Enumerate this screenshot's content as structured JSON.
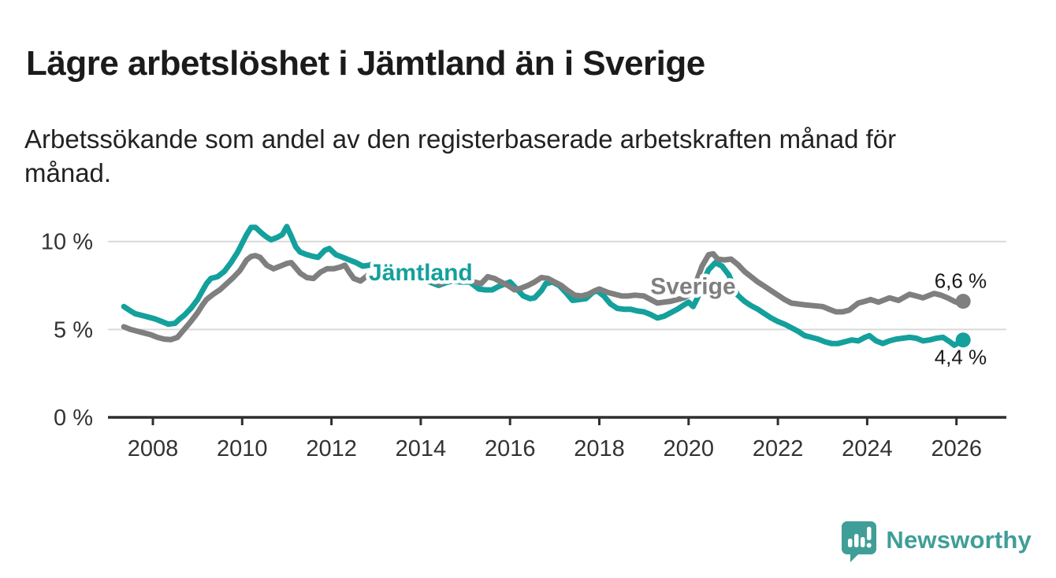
{
  "header": {
    "title": "Lägre arbetslöshet i Jämtland än i Sverige",
    "subtitle": "Arbetssökande som andel av den registerbaserade arbetskraften månad för månad."
  },
  "footer": {
    "brand": "Newsworthy",
    "brand_color": "#3f9e98"
  },
  "chart_data": {
    "type": "line",
    "title": "Lägre arbetslöshet i Jämtland än i Sverige",
    "xlabel": "",
    "ylabel": "",
    "unit": "%",
    "decimal_style": "comma",
    "grid": "horizontal",
    "xlim": [
      2007.0,
      2027.1
    ],
    "ylim": [
      0,
      11.5
    ],
    "x_ticks": [
      2008,
      2010,
      2012,
      2014,
      2016,
      2018,
      2020,
      2022,
      2024,
      2026
    ],
    "x_tick_labels": [
      "2008",
      "2010",
      "2012",
      "2014",
      "2016",
      "2018",
      "2020",
      "2022",
      "2024",
      "2026"
    ],
    "y_ticks": [
      {
        "value": 0,
        "label": "0 %"
      },
      {
        "value": 5,
        "label": "5 %"
      },
      {
        "value": 10,
        "label": "10 %"
      }
    ],
    "colors": {
      "axis": "#2f2f2f",
      "grid": "#d9d9d9",
      "tick_label": "#333333",
      "value_label": "#1a1a1a"
    },
    "series": [
      {
        "name": "Jämtland",
        "color": "#14a09c",
        "end_value": 4.4,
        "end_label": "4,4 %",
        "end_label_position": "below",
        "name_label": {
          "x": 2014.0,
          "y": 8.25
        },
        "points": [
          [
            2007.35,
            6.3
          ],
          [
            2007.5,
            6.05
          ],
          [
            2007.6,
            5.9
          ],
          [
            2007.75,
            5.8
          ],
          [
            2007.9,
            5.7
          ],
          [
            2008.05,
            5.6
          ],
          [
            2008.2,
            5.45
          ],
          [
            2008.35,
            5.3
          ],
          [
            2008.5,
            5.35
          ],
          [
            2008.6,
            5.6
          ],
          [
            2008.7,
            5.8
          ],
          [
            2008.85,
            6.2
          ],
          [
            2009.0,
            6.7
          ],
          [
            2009.1,
            7.15
          ],
          [
            2009.2,
            7.6
          ],
          [
            2009.3,
            7.9
          ],
          [
            2009.45,
            8.0
          ],
          [
            2009.6,
            8.3
          ],
          [
            2009.75,
            8.8
          ],
          [
            2009.9,
            9.4
          ],
          [
            2010.0,
            9.9
          ],
          [
            2010.1,
            10.4
          ],
          [
            2010.2,
            10.8
          ],
          [
            2010.3,
            10.8
          ],
          [
            2010.45,
            10.45
          ],
          [
            2010.55,
            10.25
          ],
          [
            2010.65,
            10.1
          ],
          [
            2010.8,
            10.25
          ],
          [
            2010.9,
            10.4
          ],
          [
            2011.0,
            10.85
          ],
          [
            2011.1,
            10.3
          ],
          [
            2011.2,
            9.7
          ],
          [
            2011.3,
            9.4
          ],
          [
            2011.45,
            9.25
          ],
          [
            2011.6,
            9.15
          ],
          [
            2011.7,
            9.1
          ],
          [
            2011.85,
            9.5
          ],
          [
            2011.95,
            9.6
          ],
          [
            2012.1,
            9.25
          ],
          [
            2012.25,
            9.1
          ],
          [
            2012.4,
            8.95
          ],
          [
            2012.55,
            8.8
          ],
          [
            2012.7,
            8.6
          ],
          [
            2012.85,
            8.65
          ],
          [
            2012.95,
            8.75
          ],
          [
            2013.1,
            8.55
          ],
          [
            2013.3,
            8.25
          ],
          [
            2013.5,
            8.05
          ],
          [
            2013.7,
            7.9
          ],
          [
            2013.9,
            7.85
          ],
          [
            2014.1,
            7.8
          ],
          [
            2014.25,
            7.65
          ],
          [
            2014.4,
            7.5
          ],
          [
            2014.55,
            7.65
          ],
          [
            2014.7,
            7.75
          ],
          [
            2014.9,
            7.7
          ],
          [
            2015.1,
            7.7
          ],
          [
            2015.3,
            7.3
          ],
          [
            2015.45,
            7.25
          ],
          [
            2015.6,
            7.25
          ],
          [
            2015.75,
            7.45
          ],
          [
            2015.9,
            7.6
          ],
          [
            2016.0,
            7.7
          ],
          [
            2016.15,
            7.3
          ],
          [
            2016.3,
            6.9
          ],
          [
            2016.45,
            6.75
          ],
          [
            2016.55,
            6.8
          ],
          [
            2016.7,
            7.2
          ],
          [
            2016.8,
            7.6
          ],
          [
            2016.95,
            7.7
          ],
          [
            2017.1,
            7.5
          ],
          [
            2017.25,
            7.1
          ],
          [
            2017.4,
            6.65
          ],
          [
            2017.55,
            6.7
          ],
          [
            2017.7,
            6.75
          ],
          [
            2017.85,
            7.1
          ],
          [
            2017.95,
            7.2
          ],
          [
            2018.1,
            6.9
          ],
          [
            2018.25,
            6.45
          ],
          [
            2018.4,
            6.2
          ],
          [
            2018.55,
            6.15
          ],
          [
            2018.7,
            6.15
          ],
          [
            2018.85,
            6.05
          ],
          [
            2019.0,
            6.0
          ],
          [
            2019.15,
            5.85
          ],
          [
            2019.3,
            5.65
          ],
          [
            2019.45,
            5.75
          ],
          [
            2019.6,
            5.95
          ],
          [
            2019.75,
            6.15
          ],
          [
            2019.9,
            6.4
          ],
          [
            2020.0,
            6.55
          ],
          [
            2020.1,
            6.3
          ],
          [
            2020.2,
            6.8
          ],
          [
            2020.3,
            7.6
          ],
          [
            2020.45,
            8.4
          ],
          [
            2020.6,
            8.8
          ],
          [
            2020.75,
            8.6
          ],
          [
            2020.9,
            8.1
          ],
          [
            2021.0,
            7.5
          ],
          [
            2021.1,
            6.95
          ],
          [
            2021.25,
            6.6
          ],
          [
            2021.4,
            6.35
          ],
          [
            2021.55,
            6.15
          ],
          [
            2021.7,
            5.9
          ],
          [
            2021.85,
            5.65
          ],
          [
            2022.0,
            5.45
          ],
          [
            2022.15,
            5.3
          ],
          [
            2022.3,
            5.1
          ],
          [
            2022.45,
            4.9
          ],
          [
            2022.6,
            4.65
          ],
          [
            2022.75,
            4.55
          ],
          [
            2022.9,
            4.45
          ],
          [
            2023.05,
            4.3
          ],
          [
            2023.2,
            4.2
          ],
          [
            2023.35,
            4.2
          ],
          [
            2023.5,
            4.3
          ],
          [
            2023.65,
            4.4
          ],
          [
            2023.8,
            4.35
          ],
          [
            2023.95,
            4.55
          ],
          [
            2024.05,
            4.65
          ],
          [
            2024.2,
            4.35
          ],
          [
            2024.35,
            4.2
          ],
          [
            2024.5,
            4.35
          ],
          [
            2024.65,
            4.45
          ],
          [
            2024.8,
            4.5
          ],
          [
            2024.95,
            4.55
          ],
          [
            2025.1,
            4.5
          ],
          [
            2025.25,
            4.35
          ],
          [
            2025.4,
            4.4
          ],
          [
            2025.55,
            4.5
          ],
          [
            2025.7,
            4.55
          ],
          [
            2025.85,
            4.3
          ],
          [
            2025.95,
            4.1
          ],
          [
            2026.05,
            4.25
          ],
          [
            2026.15,
            4.4
          ]
        ]
      },
      {
        "name": "Sverige",
        "color": "#7f7f7f",
        "end_value": 6.6,
        "end_label": "6,6 %",
        "end_label_position": "above",
        "name_label": {
          "x": 2020.1,
          "y": 7.45
        },
        "points": [
          [
            2007.35,
            5.15
          ],
          [
            2007.5,
            5.0
          ],
          [
            2007.65,
            4.9
          ],
          [
            2007.8,
            4.8
          ],
          [
            2007.95,
            4.7
          ],
          [
            2008.1,
            4.55
          ],
          [
            2008.25,
            4.45
          ],
          [
            2008.4,
            4.42
          ],
          [
            2008.55,
            4.55
          ],
          [
            2008.7,
            5.0
          ],
          [
            2008.85,
            5.45
          ],
          [
            2009.0,
            5.95
          ],
          [
            2009.1,
            6.35
          ],
          [
            2009.2,
            6.7
          ],
          [
            2009.35,
            7.0
          ],
          [
            2009.5,
            7.25
          ],
          [
            2009.65,
            7.6
          ],
          [
            2009.8,
            7.95
          ],
          [
            2009.95,
            8.35
          ],
          [
            2010.1,
            8.95
          ],
          [
            2010.2,
            9.15
          ],
          [
            2010.3,
            9.2
          ],
          [
            2010.4,
            9.1
          ],
          [
            2010.55,
            8.65
          ],
          [
            2010.7,
            8.45
          ],
          [
            2010.85,
            8.6
          ],
          [
            2011.0,
            8.75
          ],
          [
            2011.1,
            8.8
          ],
          [
            2011.2,
            8.5
          ],
          [
            2011.3,
            8.2
          ],
          [
            2011.45,
            7.95
          ],
          [
            2011.6,
            7.9
          ],
          [
            2011.75,
            8.25
          ],
          [
            2011.9,
            8.45
          ],
          [
            2012.05,
            8.45
          ],
          [
            2012.2,
            8.55
          ],
          [
            2012.3,
            8.65
          ],
          [
            2012.4,
            8.25
          ],
          [
            2012.5,
            7.9
          ],
          [
            2012.65,
            7.75
          ],
          [
            2012.8,
            8.05
          ],
          [
            2012.95,
            8.1
          ],
          [
            2013.1,
            8.3
          ],
          [
            2013.25,
            8.05
          ],
          [
            2013.4,
            7.9
          ],
          [
            2013.55,
            8.0
          ],
          [
            2013.7,
            8.15
          ],
          [
            2013.85,
            8.2
          ],
          [
            2014.0,
            8.05
          ],
          [
            2014.15,
            7.9
          ],
          [
            2014.3,
            7.7
          ],
          [
            2014.45,
            7.6
          ],
          [
            2014.6,
            8.0
          ],
          [
            2014.75,
            8.1
          ],
          [
            2014.9,
            8.0
          ],
          [
            2015.05,
            7.85
          ],
          [
            2015.2,
            7.7
          ],
          [
            2015.35,
            7.6
          ],
          [
            2015.5,
            8.0
          ],
          [
            2015.65,
            7.9
          ],
          [
            2015.8,
            7.7
          ],
          [
            2015.95,
            7.5
          ],
          [
            2016.1,
            7.25
          ],
          [
            2016.25,
            7.35
          ],
          [
            2016.4,
            7.5
          ],
          [
            2016.55,
            7.7
          ],
          [
            2016.7,
            7.95
          ],
          [
            2016.85,
            7.9
          ],
          [
            2017.0,
            7.7
          ],
          [
            2017.15,
            7.5
          ],
          [
            2017.3,
            7.2
          ],
          [
            2017.45,
            6.95
          ],
          [
            2017.6,
            6.9
          ],
          [
            2017.75,
            7.0
          ],
          [
            2017.9,
            7.2
          ],
          [
            2018.0,
            7.3
          ],
          [
            2018.2,
            7.1
          ],
          [
            2018.35,
            7.0
          ],
          [
            2018.5,
            6.9
          ],
          [
            2018.65,
            6.9
          ],
          [
            2018.8,
            6.95
          ],
          [
            2019.0,
            6.9
          ],
          [
            2019.15,
            6.7
          ],
          [
            2019.3,
            6.5
          ],
          [
            2019.45,
            6.55
          ],
          [
            2019.6,
            6.6
          ],
          [
            2019.75,
            6.7
          ],
          [
            2019.9,
            6.8
          ],
          [
            2020.0,
            6.95
          ],
          [
            2020.1,
            7.1
          ],
          [
            2020.2,
            7.9
          ],
          [
            2020.3,
            8.6
          ],
          [
            2020.45,
            9.25
          ],
          [
            2020.55,
            9.3
          ],
          [
            2020.65,
            9.0
          ],
          [
            2020.8,
            8.95
          ],
          [
            2020.95,
            9.0
          ],
          [
            2021.1,
            8.7
          ],
          [
            2021.25,
            8.3
          ],
          [
            2021.4,
            8.0
          ],
          [
            2021.55,
            7.7
          ],
          [
            2021.7,
            7.45
          ],
          [
            2021.85,
            7.2
          ],
          [
            2022.0,
            6.95
          ],
          [
            2022.15,
            6.7
          ],
          [
            2022.3,
            6.5
          ],
          [
            2022.45,
            6.45
          ],
          [
            2022.6,
            6.4
          ],
          [
            2022.8,
            6.35
          ],
          [
            2023.0,
            6.3
          ],
          [
            2023.15,
            6.15
          ],
          [
            2023.3,
            6.0
          ],
          [
            2023.45,
            6.0
          ],
          [
            2023.6,
            6.1
          ],
          [
            2023.8,
            6.5
          ],
          [
            2023.95,
            6.6
          ],
          [
            2024.08,
            6.7
          ],
          [
            2024.25,
            6.55
          ],
          [
            2024.5,
            6.8
          ],
          [
            2024.7,
            6.65
          ],
          [
            2024.95,
            7.0
          ],
          [
            2025.1,
            6.9
          ],
          [
            2025.25,
            6.8
          ],
          [
            2025.5,
            7.05
          ],
          [
            2025.65,
            6.95
          ],
          [
            2025.8,
            6.8
          ],
          [
            2025.95,
            6.6
          ],
          [
            2026.05,
            6.5
          ],
          [
            2026.15,
            6.6
          ]
        ]
      }
    ],
    "legend_position": "inline-labels"
  }
}
